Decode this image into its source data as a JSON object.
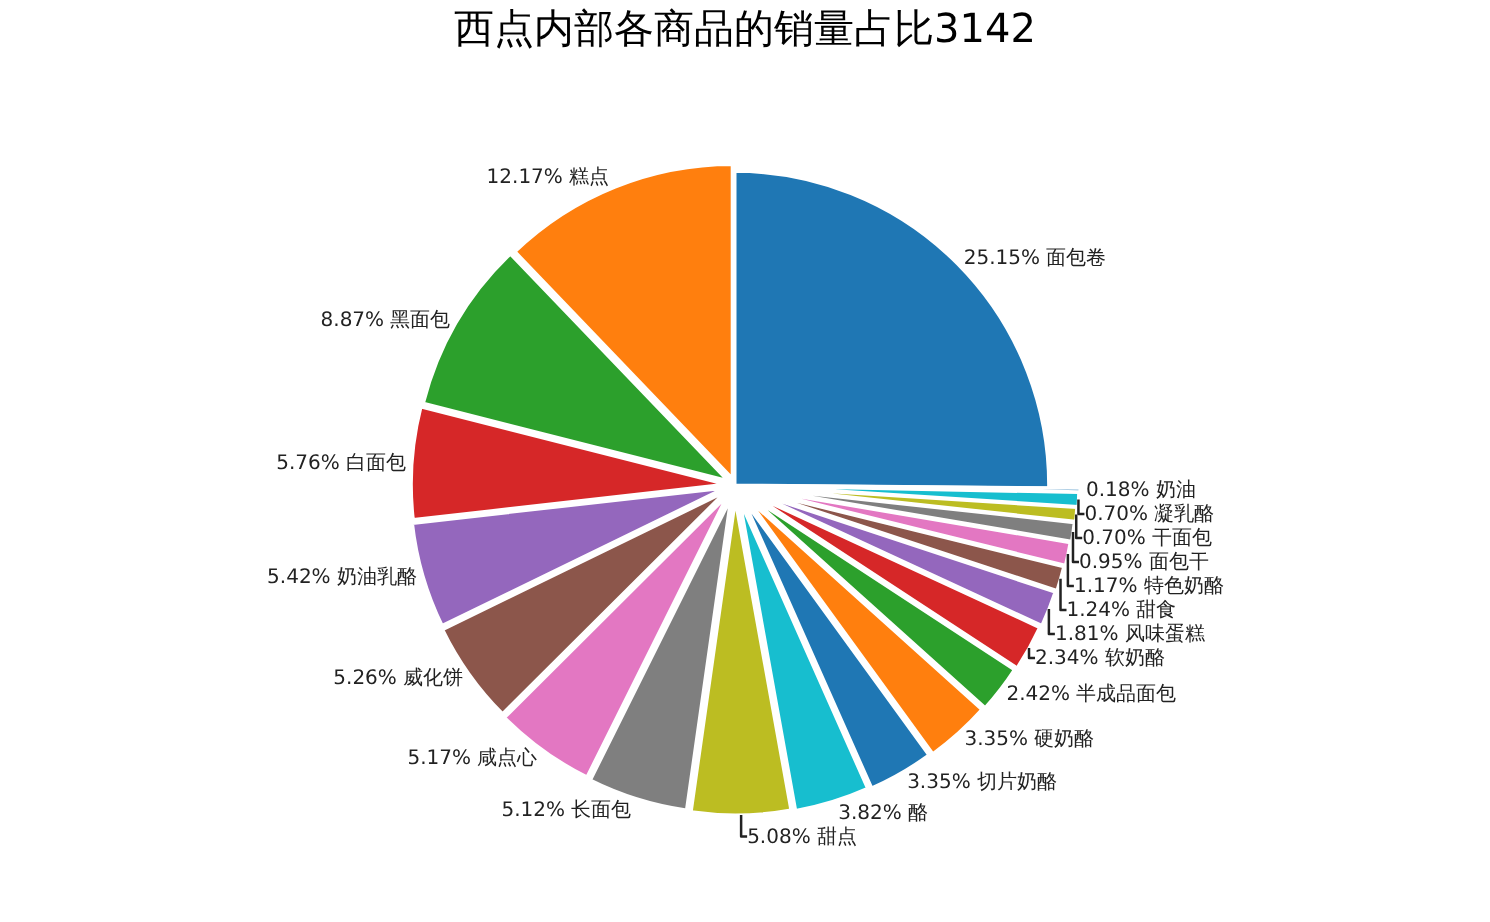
{
  "chart_data": {
    "type": "pie",
    "title": "西点内部各商品的销量占比3142",
    "categories": [
      "面包卷",
      "糕点",
      "黑面包",
      "白面包",
      "奶油乳酪",
      "威化饼",
      "咸点心",
      "长面包",
      "甜点",
      "酪",
      "切片奶酪",
      "硬奶酪",
      "半成品面包",
      "软奶酪",
      "风味蛋糕",
      "甜食",
      "特色奶酪",
      "面包干",
      "干面包",
      "凝乳酪",
      "奶油"
    ],
    "values": [
      25.15,
      12.17,
      8.87,
      5.76,
      5.42,
      5.26,
      5.17,
      5.12,
      5.08,
      3.82,
      3.35,
      3.35,
      2.42,
      2.34,
      1.81,
      1.24,
      1.17,
      0.95,
      0.7,
      0.7,
      0.18
    ],
    "value_labels": [
      "25.15%",
      "12.17%",
      "8.87%",
      "5.76%",
      "5.42%",
      "5.26%",
      "5.17%",
      "5.12%",
      "5.08%",
      "3.82%",
      "3.35%",
      "3.35%",
      "2.42%",
      "2.34%",
      "1.81%",
      "1.24%",
      "1.17%",
      "0.95%",
      "0.70%",
      "0.70%",
      "0.18%"
    ],
    "colors": [
      "#1f77b4",
      "#ff7f0e",
      "#2ca02c",
      "#d62728",
      "#9467bd",
      "#8c564b",
      "#e377c2",
      "#7f7f7f",
      "#bcbd22",
      "#17becf",
      "#1f77b4",
      "#ff7f0e",
      "#2ca02c",
      "#d62728",
      "#9467bd",
      "#8c564b",
      "#e377c2",
      "#7f7f7f",
      "#bcbd22",
      "#17becf",
      "#1f77b4"
    ],
    "legend": false
  }
}
